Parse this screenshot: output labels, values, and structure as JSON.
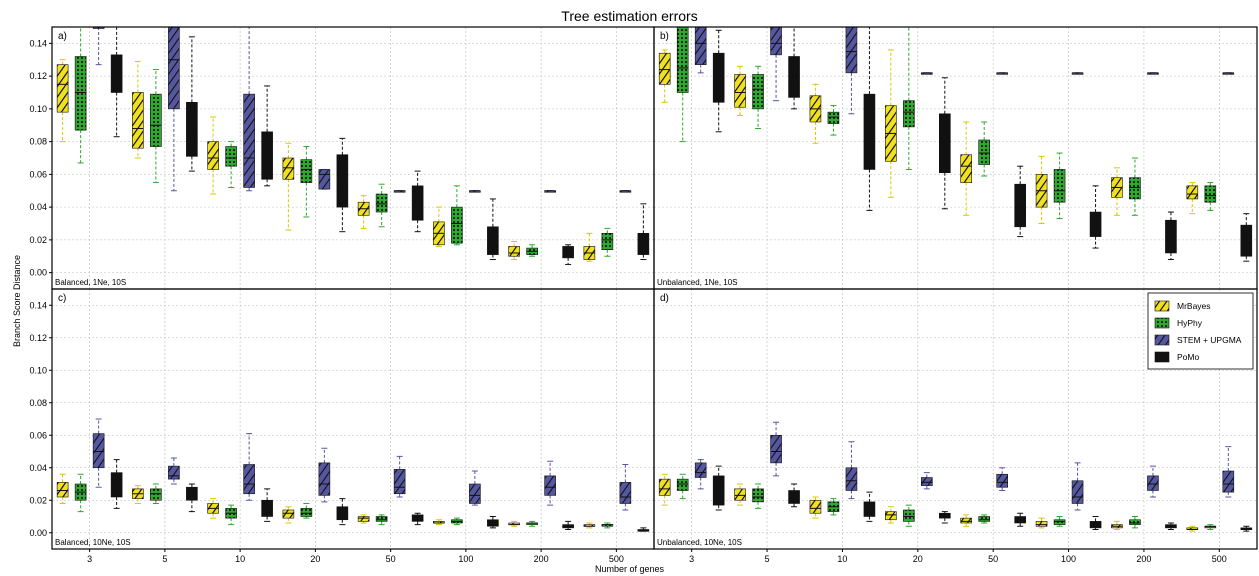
{
  "chart_data": {
    "type": "box",
    "title": "Tree estimation errors",
    "xlabel": "Number of genes",
    "ylabel": "Branch Score Distance",
    "categories": [
      "3",
      "5",
      "10",
      "20",
      "50",
      "100",
      "200",
      "500"
    ],
    "ylim": [
      -0.01,
      0.15
    ],
    "yticks": [
      "0.00",
      "0.02",
      "0.04",
      "0.06",
      "0.08",
      "0.10",
      "0.12",
      "0.14"
    ],
    "grid": true,
    "legend_position": "top-right of panel d",
    "series": [
      {
        "name": "MrBayes",
        "color": "#f0e020",
        "pattern": "hatch"
      },
      {
        "name": "HyPhy",
        "color": "#2ea82e",
        "pattern": "dots"
      },
      {
        "name": "STEM + UPGMA",
        "color": "#5557a0",
        "pattern": "hatch"
      },
      {
        "name": "PoMo",
        "color": "#111111",
        "pattern": "solid"
      }
    ],
    "panels": [
      {
        "letter": "a)",
        "label": "Balanced, 1Ne, 10S",
        "boxes": [
          [
            [
              0.08,
              0.098,
              0.115,
              0.127,
              0.13
            ],
            [
              0.067,
              0.087,
              0.11,
              0.132,
              0.15
            ],
            [
              0.127,
              0.15,
              0.15,
              0.15,
              0.15
            ],
            [
              0.083,
              0.11,
              0.12,
              0.133,
              0.15
            ]
          ],
          [
            [
              0.07,
              0.076,
              0.088,
              0.11,
              0.129
            ],
            [
              0.055,
              0.077,
              0.09,
              0.109,
              0.124
            ],
            [
              0.05,
              0.1,
              0.13,
              0.15,
              0.15
            ],
            [
              0.062,
              0.071,
              0.085,
              0.104,
              0.144
            ]
          ],
          [
            [
              0.048,
              0.063,
              0.07,
              0.08,
              0.095
            ],
            [
              0.052,
              0.065,
              0.07,
              0.077,
              0.08
            ],
            [
              0.05,
              0.052,
              0.07,
              0.109,
              0.15
            ],
            [
              0.053,
              0.057,
              0.072,
              0.086,
              0.114
            ]
          ],
          [
            [
              0.026,
              0.057,
              0.064,
              0.07,
              0.079
            ],
            [
              0.034,
              0.055,
              0.063,
              0.069,
              0.077
            ],
            [
              0.051,
              0.051,
              0.06,
              0.063,
              0.063
            ],
            [
              0.025,
              0.04,
              0.053,
              0.072,
              0.082
            ]
          ],
          [
            [
              0.027,
              0.035,
              0.039,
              0.043,
              0.047
            ],
            [
              0.028,
              0.037,
              0.042,
              0.048,
              0.054
            ],
            [
              0.05,
              0.05,
              0.05,
              0.05,
              0.05
            ],
            [
              0.025,
              0.032,
              0.038,
              0.053,
              0.062
            ]
          ],
          [
            [
              0.016,
              0.017,
              0.024,
              0.031,
              0.04
            ],
            [
              0.017,
              0.018,
              0.03,
              0.04,
              0.053
            ],
            [
              0.05,
              0.05,
              0.05,
              0.05,
              0.05
            ],
            [
              0.008,
              0.011,
              0.016,
              0.028,
              0.045
            ]
          ],
          [
            [
              0.008,
              0.01,
              0.012,
              0.016,
              0.019
            ],
            [
              0.01,
              0.011,
              0.013,
              0.015,
              0.017
            ],
            [
              0.05,
              0.05,
              0.05,
              0.05,
              0.05
            ],
            [
              0.005,
              0.009,
              0.012,
              0.016,
              0.017
            ]
          ],
          [
            [
              0.007,
              0.008,
              0.012,
              0.016,
              0.024
            ],
            [
              0.01,
              0.014,
              0.02,
              0.024,
              0.027
            ],
            [
              0.05,
              0.05,
              0.05,
              0.05,
              0.05
            ],
            [
              0.008,
              0.011,
              0.016,
              0.024,
              0.042
            ]
          ]
        ]
      },
      {
        "letter": "b)",
        "label": "Unbalanced, 1Ne, 10S",
        "boxes": [
          [
            [
              0.104,
              0.115,
              0.124,
              0.134,
              0.136
            ],
            [
              0.08,
              0.11,
              0.125,
              0.15,
              0.15
            ],
            [
              0.122,
              0.127,
              0.14,
              0.15,
              0.15
            ],
            [
              0.086,
              0.104,
              0.123,
              0.134,
              0.148
            ]
          ],
          [
            [
              0.096,
              0.101,
              0.11,
              0.121,
              0.126
            ],
            [
              0.088,
              0.1,
              0.112,
              0.121,
              0.126
            ],
            [
              0.105,
              0.133,
              0.14,
              0.15,
              0.15
            ],
            [
              0.1,
              0.107,
              0.12,
              0.132,
              0.15
            ]
          ],
          [
            [
              0.079,
              0.092,
              0.1,
              0.108,
              0.115
            ],
            [
              0.084,
              0.091,
              0.095,
              0.098,
              0.102
            ],
            [
              0.097,
              0.122,
              0.135,
              0.15,
              0.15
            ],
            [
              0.038,
              0.063,
              0.085,
              0.109,
              0.15
            ]
          ],
          [
            [
              0.046,
              0.068,
              0.085,
              0.102,
              0.136
            ],
            [
              0.063,
              0.089,
              0.098,
              0.105,
              0.15
            ],
            [
              0.122,
              0.122,
              0.122,
              0.122,
              0.122
            ],
            [
              0.039,
              0.061,
              0.08,
              0.097,
              0.119
            ]
          ],
          [
            [
              0.035,
              0.055,
              0.065,
              0.072,
              0.092
            ],
            [
              0.059,
              0.066,
              0.073,
              0.081,
              0.092
            ],
            [
              0.122,
              0.122,
              0.122,
              0.122,
              0.122
            ],
            [
              0.022,
              0.028,
              0.04,
              0.054,
              0.065
            ]
          ],
          [
            [
              0.03,
              0.04,
              0.05,
              0.06,
              0.071
            ],
            [
              0.033,
              0.043,
              0.05,
              0.063,
              0.073
            ],
            [
              0.122,
              0.122,
              0.122,
              0.122,
              0.122
            ],
            [
              0.015,
              0.022,
              0.03,
              0.037,
              0.053
            ]
          ],
          [
            [
              0.035,
              0.046,
              0.052,
              0.058,
              0.064
            ],
            [
              0.035,
              0.045,
              0.052,
              0.058,
              0.07
            ],
            [
              0.122,
              0.122,
              0.122,
              0.122,
              0.122
            ],
            [
              0.008,
              0.012,
              0.02,
              0.032,
              0.037
            ]
          ],
          [
            [
              0.036,
              0.045,
              0.048,
              0.053,
              0.055
            ],
            [
              0.038,
              0.043,
              0.047,
              0.053,
              0.055
            ],
            [
              0.122,
              0.122,
              0.122,
              0.122,
              0.122
            ],
            [
              0.007,
              0.01,
              0.018,
              0.029,
              0.036
            ]
          ]
        ]
      },
      {
        "letter": "c)",
        "label": "Balanced, 10Ne, 10S",
        "boxes": [
          [
            [
              0.018,
              0.022,
              0.026,
              0.031,
              0.036
            ],
            [
              0.013,
              0.02,
              0.025,
              0.03,
              0.036
            ],
            [
              0.028,
              0.04,
              0.05,
              0.061,
              0.07
            ],
            [
              0.015,
              0.022,
              0.03,
              0.037,
              0.045
            ]
          ],
          [
            [
              0.018,
              0.021,
              0.024,
              0.027,
              0.029
            ],
            [
              0.018,
              0.02,
              0.024,
              0.027,
              0.03
            ],
            [
              0.03,
              0.033,
              0.035,
              0.041,
              0.046
            ],
            [
              0.013,
              0.02,
              0.024,
              0.028,
              0.03
            ]
          ],
          [
            [
              0.009,
              0.012,
              0.015,
              0.018,
              0.021
            ],
            [
              0.005,
              0.009,
              0.012,
              0.015,
              0.017
            ],
            [
              0.02,
              0.024,
              0.03,
              0.042,
              0.061
            ],
            [
              0.007,
              0.01,
              0.013,
              0.02,
              0.027
            ]
          ],
          [
            [
              0.006,
              0.009,
              0.012,
              0.014,
              0.016
            ],
            [
              0.009,
              0.01,
              0.012,
              0.015,
              0.018
            ],
            [
              0.019,
              0.023,
              0.03,
              0.043,
              0.052
            ],
            [
              0.005,
              0.008,
              0.011,
              0.016,
              0.021
            ]
          ],
          [
            [
              0.006,
              0.007,
              0.009,
              0.01,
              0.011
            ],
            [
              0.005,
              0.007,
              0.008,
              0.01,
              0.011
            ],
            [
              0.022,
              0.024,
              0.028,
              0.039,
              0.047
            ],
            [
              0.005,
              0.007,
              0.008,
              0.011,
              0.012
            ]
          ],
          [
            [
              0.005,
              0.006,
              0.006,
              0.007,
              0.008
            ],
            [
              0.005,
              0.006,
              0.007,
              0.008,
              0.009
            ],
            [
              0.017,
              0.018,
              0.023,
              0.03,
              0.038
            ],
            [
              0.003,
              0.004,
              0.005,
              0.008,
              0.01
            ]
          ],
          [
            [
              0.004,
              0.005,
              0.005,
              0.006,
              0.007
            ],
            [
              0.004,
              0.005,
              0.006,
              0.006,
              0.007
            ],
            [
              0.017,
              0.023,
              0.028,
              0.035,
              0.044
            ],
            [
              0.002,
              0.003,
              0.004,
              0.005,
              0.007
            ]
          ],
          [
            [
              0.003,
              0.004,
              0.004,
              0.005,
              0.006
            ],
            [
              0.003,
              0.004,
              0.005,
              0.005,
              0.006
            ],
            [
              0.014,
              0.018,
              0.022,
              0.031,
              0.042
            ],
            [
              0.001,
              0.001,
              0.001,
              0.002,
              0.003
            ]
          ]
        ]
      },
      {
        "letter": "d)",
        "label": "Unbalanced, 10Ne, 10S",
        "boxes": [
          [
            [
              0.017,
              0.023,
              0.027,
              0.033,
              0.036
            ],
            [
              0.021,
              0.026,
              0.03,
              0.033,
              0.036
            ],
            [
              0.027,
              0.034,
              0.037,
              0.043,
              0.045
            ],
            [
              0.014,
              0.017,
              0.022,
              0.035,
              0.041
            ]
          ],
          [
            [
              0.017,
              0.02,
              0.023,
              0.027,
              0.03
            ],
            [
              0.015,
              0.019,
              0.022,
              0.027,
              0.03
            ],
            [
              0.035,
              0.043,
              0.05,
              0.06,
              0.068
            ],
            [
              0.016,
              0.018,
              0.021,
              0.026,
              0.03
            ]
          ],
          [
            [
              0.009,
              0.012,
              0.015,
              0.02,
              0.022
            ],
            [
              0.011,
              0.013,
              0.016,
              0.019,
              0.021
            ],
            [
              0.021,
              0.026,
              0.032,
              0.04,
              0.056
            ],
            [
              0.007,
              0.01,
              0.013,
              0.019,
              0.025
            ]
          ],
          [
            [
              0.006,
              0.008,
              0.011,
              0.013,
              0.016
            ],
            [
              0.004,
              0.007,
              0.01,
              0.014,
              0.017
            ],
            [
              0.027,
              0.029,
              0.031,
              0.034,
              0.037
            ],
            [
              0.006,
              0.009,
              0.01,
              0.012,
              0.013
            ]
          ],
          [
            [
              0.004,
              0.006,
              0.007,
              0.009,
              0.011
            ],
            [
              0.006,
              0.007,
              0.008,
              0.01,
              0.011
            ],
            [
              0.026,
              0.028,
              0.031,
              0.036,
              0.04
            ],
            [
              0.004,
              0.006,
              0.008,
              0.01,
              0.012
            ]
          ],
          [
            [
              0.003,
              0.004,
              0.005,
              0.007,
              0.009
            ],
            [
              0.004,
              0.005,
              0.007,
              0.008,
              0.01
            ],
            [
              0.014,
              0.018,
              0.022,
              0.032,
              0.043
            ],
            [
              0.002,
              0.003,
              0.004,
              0.007,
              0.01
            ]
          ],
          [
            [
              0.002,
              0.003,
              0.004,
              0.005,
              0.007
            ],
            [
              0.003,
              0.005,
              0.006,
              0.008,
              0.01
            ],
            [
              0.022,
              0.026,
              0.03,
              0.035,
              0.041
            ],
            [
              0.002,
              0.003,
              0.004,
              0.005,
              0.006
            ]
          ],
          [
            [
              0.001,
              0.002,
              0.002,
              0.003,
              0.004
            ],
            [
              0.002,
              0.003,
              0.004,
              0.004,
              0.005
            ],
            [
              0.022,
              0.025,
              0.03,
              0.038,
              0.053
            ],
            [
              0.001,
              0.002,
              0.002,
              0.003,
              0.004
            ]
          ]
        ]
      }
    ]
  }
}
